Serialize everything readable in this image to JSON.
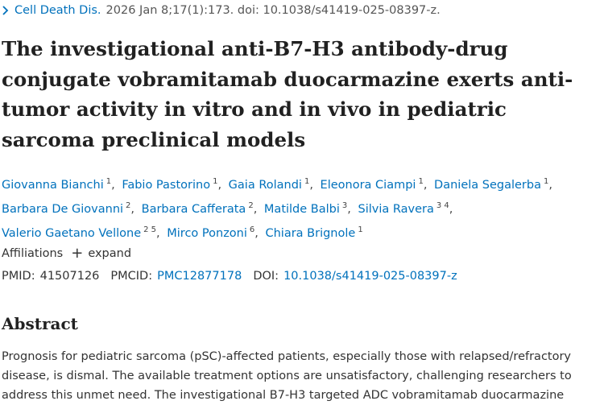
{
  "citation": {
    "journal": "Cell Death Dis.",
    "details": "2026 Jan 8;17(1):173. doi: 10.1038/s41419-025-08397-z."
  },
  "article": {
    "title_lines": [
      "The investigational anti-B7-H3 antibody-drug",
      "conjugate vobramitamab duocarmazine exerts anti-",
      "tumor activity in vitro and in vivo in pediatric",
      "sarcoma preclinical models"
    ]
  },
  "authors": [
    {
      "name": "Giovanna Bianchi",
      "aff": "1"
    },
    {
      "name": "Fabio Pastorino",
      "aff": "1"
    },
    {
      "name": "Gaia Rolandi",
      "aff": "1"
    },
    {
      "name": "Eleonora Ciampi",
      "aff": "1"
    },
    {
      "name": "Daniela Segalerba",
      "aff": "1"
    },
    {
      "name": "Barbara De Giovanni",
      "aff": "2"
    },
    {
      "name": "Barbara Cafferata",
      "aff": "2"
    },
    {
      "name": "Matilde Balbi",
      "aff": "3"
    },
    {
      "name": "Silvia Ravera",
      "aff": "3 4"
    },
    {
      "name": "Valerio Gaetano Vellone",
      "aff": "2 5"
    },
    {
      "name": "Mirco Ponzoni",
      "aff": "6"
    },
    {
      "name": "Chiara Brignole",
      "aff": "1"
    }
  ],
  "affiliations": {
    "label": "Affiliations",
    "expand_icon": "plus-icon",
    "expand_label": "expand"
  },
  "identifiers": {
    "pmid_label": "PMID:",
    "pmid": "41507126",
    "pmcid_label": "PMCID:",
    "pmcid": "PMC12877178",
    "doi_label": "DOI:",
    "doi": "10.1038/s41419-025-08397-z"
  },
  "abstract": {
    "heading": "Abstract",
    "lines": [
      "Prognosis for pediatric sarcoma (pSC)-affected patients, especially those with relapsed/refractory",
      "disease, is dismal. The available treatment options are unsatisfactory, challenging researchers to",
      "address this unmet need. The investigational B7-H3 targeted ADC vobramitamab duocarmazine"
    ]
  },
  "colors": {
    "link": "#0071bc",
    "text": "#212121"
  }
}
